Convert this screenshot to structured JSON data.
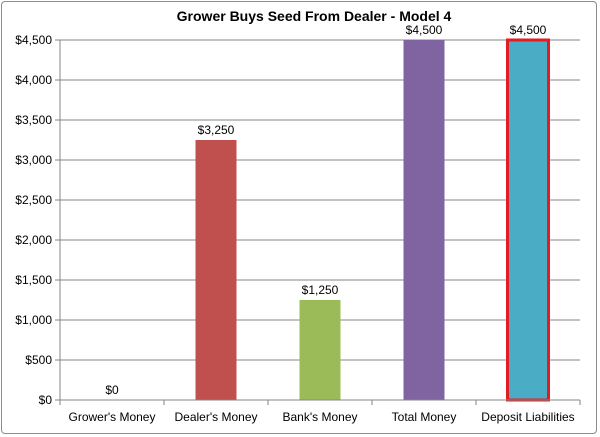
{
  "chart_data": {
    "type": "bar",
    "title": "Grower Buys Seed From Dealer - Model 4",
    "xlabel": "",
    "ylabel": "",
    "categories": [
      "Grower's Money",
      "Dealer's Money",
      "Bank's Money",
      "Total Money",
      "Deposit Liabilities"
    ],
    "values": [
      0,
      3250,
      1250,
      4500,
      4500
    ],
    "data_labels": [
      "$0",
      "$3,250",
      "$1,250",
      "$4,500",
      "$4,500"
    ],
    "colors": [
      "#4f81bd",
      "#c0504d",
      "#9bbb59",
      "#8064a2",
      "#4bacc6"
    ],
    "highlight": {
      "index": 4,
      "outline_color": "#e31c23"
    },
    "ylim": [
      0,
      4500
    ],
    "yticks": [
      0,
      500,
      1000,
      1500,
      2000,
      2500,
      3000,
      3500,
      4000,
      4500
    ],
    "ytick_labels": [
      "$0",
      "$500",
      "$1,000",
      "$1,500",
      "$2,000",
      "$2,500",
      "$3,000",
      "$3,500",
      "$4,000",
      "$4,500"
    ],
    "grid": true,
    "legend": "none"
  }
}
